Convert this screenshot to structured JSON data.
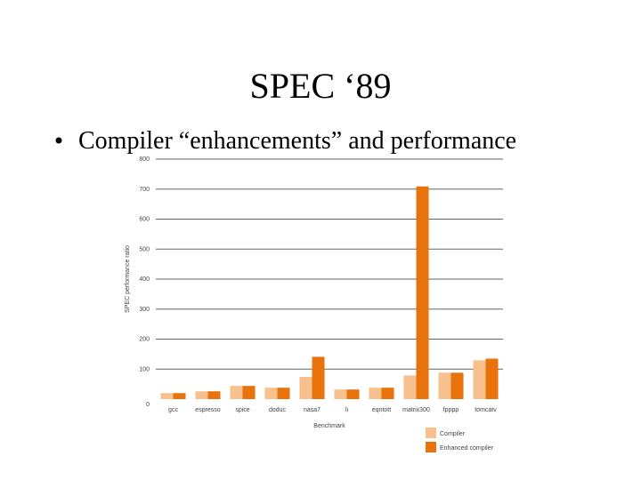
{
  "slide": {
    "title": "SPEC ‘89",
    "bullet": "Compiler “enhancements” and performance"
  },
  "chart_data": {
    "type": "bar",
    "x_label": "Benchmark",
    "y_label": "SPEC performance ratio",
    "categories": [
      "gcc",
      "espresso",
      "spice",
      "doduc",
      "nasa7",
      "li",
      "eqntott",
      "matrix300",
      "fpppp",
      "tomcatv"
    ],
    "series": [
      {
        "name": "Compiler",
        "color": "#f7c08c",
        "values": [
          20,
          26,
          44,
          38,
          74,
          32,
          38,
          79,
          88,
          129
        ]
      },
      {
        "name": "Enhanced compiler",
        "color": "#e8720c",
        "values": [
          20,
          26,
          44,
          38,
          141,
          32,
          38,
          709,
          88,
          135
        ]
      }
    ],
    "ylim": [
      0,
      800
    ],
    "yticks": [
      0,
      100,
      200,
      300,
      400,
      500,
      600,
      700,
      800
    ],
    "grid": true,
    "legend": "bottom-right"
  }
}
